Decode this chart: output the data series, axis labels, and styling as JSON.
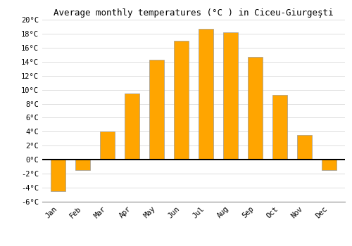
{
  "months": [
    "Jan",
    "Feb",
    "Mar",
    "Apr",
    "May",
    "Jun",
    "Jul",
    "Aug",
    "Sep",
    "Oct",
    "Nov",
    "Dec"
  ],
  "temperatures": [
    -4.5,
    -1.5,
    4.0,
    9.5,
    14.3,
    17.0,
    18.7,
    18.2,
    14.7,
    9.3,
    3.5,
    -1.5
  ],
  "bar_color": "#FFA500",
  "bar_edge_color": "#999999",
  "title": "Average monthly temperatures (°C ) in Ciceu-Giurgeşti",
  "ylim": [
    -6,
    20
  ],
  "yticks": [
    -6,
    -4,
    -2,
    0,
    2,
    4,
    6,
    8,
    10,
    12,
    14,
    16,
    18,
    20
  ],
  "ylabel_suffix": "°C",
  "background_color": "#ffffff",
  "grid_color": "#dddddd",
  "title_fontsize": 9,
  "tick_fontsize": 7.5,
  "bar_width": 0.6
}
